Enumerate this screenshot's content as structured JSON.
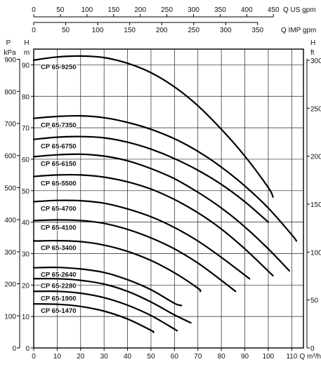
{
  "chart_data": {
    "type": "line",
    "top_axis_us": {
      "unit": "Q US gpm",
      "ticks": [
        "0",
        "50",
        "100",
        "150",
        "200",
        "250",
        "300",
        "350",
        "400",
        "450"
      ]
    },
    "top_axis_imp": {
      "unit": "Q IMP gpm",
      "ticks": [
        "0",
        "50",
        "100",
        "150",
        "200",
        "250",
        "300",
        "350"
      ]
    },
    "x_axis": {
      "unit": "Q m³/h",
      "ticks": [
        "0",
        "10",
        "20",
        "30",
        "40",
        "50",
        "60",
        "70",
        "80",
        "90",
        "100",
        "110"
      ],
      "xlim": [
        0,
        115
      ]
    },
    "left_axis_p": {
      "unit_top": "P",
      "unit_bottom": "kPa",
      "ticks": [
        "0",
        "100",
        "200",
        "300",
        "400",
        "500",
        "600",
        "700",
        "800",
        "900"
      ]
    },
    "left_axis_h": {
      "unit_top": "H",
      "unit_bottom": "m",
      "ticks": [
        "0",
        "10",
        "20",
        "30",
        "40",
        "50",
        "60",
        "70",
        "80",
        "90"
      ],
      "ylim": [
        0,
        95
      ]
    },
    "right_axis_ft": {
      "unit_top": "H",
      "unit_bottom": "ft",
      "ticks": [
        "0",
        "50",
        "100",
        "150",
        "200",
        "250",
        "300"
      ]
    },
    "grid": true,
    "series": [
      {
        "name": "CP 65-9250",
        "points": [
          [
            0,
            91.5
          ],
          [
            10,
            92.5
          ],
          [
            20,
            92.8
          ],
          [
            30,
            92.3
          ],
          [
            40,
            90.5
          ],
          [
            50,
            87.5
          ],
          [
            60,
            83
          ],
          [
            70,
            77
          ],
          [
            80,
            69.5
          ],
          [
            90,
            61
          ],
          [
            100,
            51
          ],
          [
            102,
            48
          ]
        ]
      },
      {
        "name": "CP 65-7350",
        "points": [
          [
            0,
            73
          ],
          [
            10,
            73.6
          ],
          [
            20,
            73.8
          ],
          [
            30,
            73.2
          ],
          [
            40,
            71.7
          ],
          [
            50,
            69.5
          ],
          [
            60,
            66.5
          ],
          [
            70,
            62.5
          ],
          [
            80,
            57.5
          ],
          [
            90,
            51.5
          ],
          [
            100,
            44.5
          ],
          [
            110,
            36
          ],
          [
            112,
            34
          ]
        ]
      },
      {
        "name": "CP 65-6750",
        "points": [
          [
            0,
            66.3
          ],
          [
            10,
            67
          ],
          [
            20,
            67.2
          ],
          [
            30,
            66.8
          ],
          [
            40,
            65.4
          ],
          [
            50,
            63.2
          ],
          [
            60,
            60.2
          ],
          [
            70,
            56.5
          ],
          [
            80,
            52
          ],
          [
            90,
            46.5
          ],
          [
            100,
            40
          ]
        ]
      },
      {
        "name": "CP 65-6150",
        "points": [
          [
            0,
            60.8
          ],
          [
            10,
            61.4
          ],
          [
            20,
            61.6
          ],
          [
            30,
            61
          ],
          [
            40,
            59.5
          ],
          [
            50,
            57
          ],
          [
            60,
            53.8
          ],
          [
            70,
            49.5
          ],
          [
            80,
            44.5
          ],
          [
            90,
            38.5
          ],
          [
            100,
            31.5
          ],
          [
            109,
            24.5
          ]
        ]
      },
      {
        "name": "CP 65-5500",
        "points": [
          [
            0,
            54.5
          ],
          [
            10,
            55
          ],
          [
            20,
            55
          ],
          [
            30,
            54.3
          ],
          [
            40,
            52.8
          ],
          [
            50,
            50.5
          ],
          [
            60,
            47.2
          ],
          [
            70,
            43
          ],
          [
            80,
            37.8
          ],
          [
            90,
            31.5
          ],
          [
            102,
            23
          ]
        ]
      },
      {
        "name": "CP 65-4700",
        "points": [
          [
            0,
            46.5
          ],
          [
            10,
            46.9
          ],
          [
            20,
            46.8
          ],
          [
            30,
            46
          ],
          [
            40,
            44.2
          ],
          [
            50,
            41.7
          ],
          [
            60,
            38.3
          ],
          [
            70,
            34
          ],
          [
            80,
            28.8
          ],
          [
            92,
            22
          ]
        ]
      },
      {
        "name": "CP 65-4100",
        "points": [
          [
            0,
            40.5
          ],
          [
            10,
            40.7
          ],
          [
            20,
            40.5
          ],
          [
            30,
            39.6
          ],
          [
            40,
            37.7
          ],
          [
            50,
            35
          ],
          [
            60,
            31.5
          ],
          [
            70,
            27
          ],
          [
            80,
            21.5
          ],
          [
            86,
            18
          ]
        ]
      },
      {
        "name": "CP 65-3400",
        "points": [
          [
            0,
            34
          ],
          [
            10,
            34.1
          ],
          [
            20,
            33.8
          ],
          [
            30,
            32.7
          ],
          [
            40,
            30.7
          ],
          [
            50,
            27.8
          ],
          [
            60,
            23.9
          ],
          [
            70,
            19
          ],
          [
            71,
            18
          ]
        ]
      },
      {
        "name": "CP 65-2640",
        "points": [
          [
            0,
            25.5
          ],
          [
            10,
            25.6
          ],
          [
            20,
            25.1
          ],
          [
            30,
            24
          ],
          [
            40,
            21.7
          ],
          [
            50,
            18.5
          ],
          [
            60,
            14.2
          ],
          [
            63,
            13.5
          ]
        ]
      },
      {
        "name": "CP 65-2280",
        "points": [
          [
            0,
            22
          ],
          [
            10,
            22
          ],
          [
            20,
            21.5
          ],
          [
            30,
            20.3
          ],
          [
            40,
            18
          ],
          [
            50,
            14.6
          ],
          [
            60,
            10.5
          ],
          [
            67,
            8
          ]
        ]
      },
      {
        "name": "CP 65-1900",
        "points": [
          [
            0,
            18
          ],
          [
            10,
            18
          ],
          [
            20,
            17.4
          ],
          [
            30,
            16
          ],
          [
            40,
            13.6
          ],
          [
            50,
            10.3
          ],
          [
            60,
            6
          ],
          [
            61,
            5.5
          ]
        ]
      },
      {
        "name": "CP 65-1470",
        "points": [
          [
            0,
            14
          ],
          [
            10,
            13.9
          ],
          [
            20,
            13.2
          ],
          [
            30,
            11.7
          ],
          [
            40,
            9.2
          ],
          [
            50,
            5.6
          ],
          [
            51,
            5
          ]
        ]
      }
    ]
  }
}
